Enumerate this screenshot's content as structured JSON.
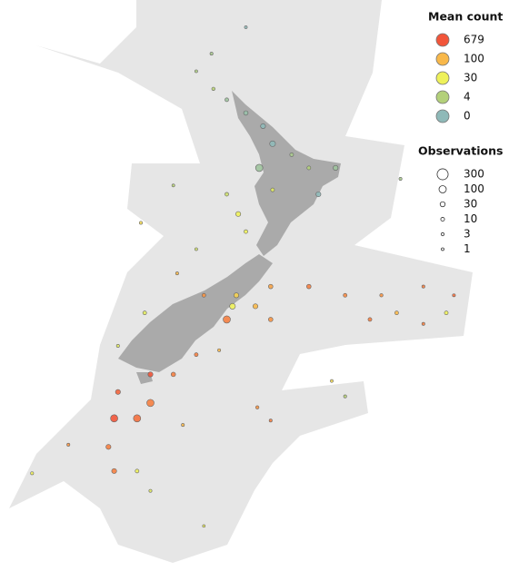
{
  "legend": {
    "mean_count": {
      "title": "Mean count",
      "items": [
        {
          "value": 679,
          "color": "#f2553a"
        },
        {
          "value": 100,
          "color": "#f8b84a"
        },
        {
          "value": 30,
          "color": "#eef15a"
        },
        {
          "value": 4,
          "color": "#b3d07a"
        },
        {
          "value": 0,
          "color": "#8fb9b8"
        }
      ]
    },
    "observations": {
      "title": "Observations",
      "items": [
        300,
        100,
        30,
        10,
        3,
        1
      ]
    }
  },
  "points": [
    {
      "lon": 171.7,
      "lat": -32.5,
      "mean": 2,
      "obs": 3
    },
    {
      "lon": 170.9,
      "lat": -33.3,
      "mean": 3,
      "obs": 2
    },
    {
      "lon": 171.8,
      "lat": -34.1,
      "mean": 5,
      "obs": 5
    },
    {
      "lon": 172.5,
      "lat": -34.6,
      "mean": 1,
      "obs": 10
    },
    {
      "lon": 173.5,
      "lat": -35.2,
      "mean": 0.5,
      "obs": 20
    },
    {
      "lon": 174.4,
      "lat": -35.8,
      "mean": 0,
      "obs": 30
    },
    {
      "lon": 174.9,
      "lat": -36.6,
      "mean": 0,
      "obs": 50
    },
    {
      "lon": 174.2,
      "lat": -37.7,
      "mean": 1,
      "obs": 100
    },
    {
      "lon": 175.9,
      "lat": -37.1,
      "mean": 2,
      "obs": 10
    },
    {
      "lon": 176.8,
      "lat": -37.7,
      "mean": 4,
      "obs": 10
    },
    {
      "lon": 178.2,
      "lat": -37.7,
      "mean": 1,
      "obs": 30
    },
    {
      "lon": 181.6,
      "lat": -38.2,
      "mean": 2,
      "obs": 3
    },
    {
      "lon": 177.3,
      "lat": -38.9,
      "mean": 0,
      "obs": 30
    },
    {
      "lon": 174.9,
      "lat": -38.7,
      "mean": 20,
      "obs": 10
    },
    {
      "lon": 173.1,
      "lat": -39.8,
      "mean": 30,
      "obs": 30
    },
    {
      "lon": 173.5,
      "lat": -40.6,
      "mean": 30,
      "obs": 10
    },
    {
      "lon": 172.5,
      "lat": -38.9,
      "mean": 10,
      "obs": 10
    },
    {
      "lon": 169.7,
      "lat": -38.5,
      "mean": 5,
      "obs": 2
    },
    {
      "lon": 168.0,
      "lat": -40.2,
      "mean": 50,
      "obs": 3
    },
    {
      "lon": 170.9,
      "lat": -41.4,
      "mean": 10,
      "obs": 2
    },
    {
      "lon": 169.9,
      "lat": -42.5,
      "mean": 100,
      "obs": 3
    },
    {
      "lon": 171.3,
      "lat": -43.5,
      "mean": 200,
      "obs": 10
    },
    {
      "lon": 173.0,
      "lat": -43.5,
      "mean": 60,
      "obs": 30
    },
    {
      "lon": 174.8,
      "lat": -43.1,
      "mean": 150,
      "obs": 20
    },
    {
      "lon": 176.8,
      "lat": -43.1,
      "mean": 300,
      "obs": 20
    },
    {
      "lon": 178.7,
      "lat": -43.5,
      "mean": 250,
      "obs": 10
    },
    {
      "lon": 180.6,
      "lat": -43.5,
      "mean": 200,
      "obs": 5
    },
    {
      "lon": 182.8,
      "lat": -43.1,
      "mean": 300,
      "obs": 3
    },
    {
      "lon": 184.4,
      "lat": -43.5,
      "mean": 400,
      "obs": 3
    },
    {
      "lon": 172.8,
      "lat": -44.0,
      "mean": 30,
      "obs": 50
    },
    {
      "lon": 174.0,
      "lat": -44.0,
      "mean": 100,
      "obs": 30
    },
    {
      "lon": 172.5,
      "lat": -44.6,
      "mean": 300,
      "obs": 100
    },
    {
      "lon": 174.8,
      "lat": -44.6,
      "mean": 200,
      "obs": 20
    },
    {
      "lon": 180.0,
      "lat": -44.6,
      "mean": 300,
      "obs": 10
    },
    {
      "lon": 181.4,
      "lat": -44.3,
      "mean": 100,
      "obs": 10
    },
    {
      "lon": 184.0,
      "lat": -44.3,
      "mean": 30,
      "obs": 10
    },
    {
      "lon": 182.8,
      "lat": -44.8,
      "mean": 300,
      "obs": 3
    },
    {
      "lon": 168.2,
      "lat": -44.3,
      "mean": 20,
      "obs": 10
    },
    {
      "lon": 166.8,
      "lat": -45.8,
      "mean": 20,
      "obs": 3
    },
    {
      "lon": 168.5,
      "lat": -47.1,
      "mean": 679,
      "obs": 30
    },
    {
      "lon": 169.7,
      "lat": -47.1,
      "mean": 300,
      "obs": 20
    },
    {
      "lon": 168.5,
      "lat": -48.4,
      "mean": 300,
      "obs": 100
    },
    {
      "lon": 166.8,
      "lat": -47.9,
      "mean": 500,
      "obs": 30
    },
    {
      "lon": 166.6,
      "lat": -49.1,
      "mean": 679,
      "obs": 100
    },
    {
      "lon": 167.8,
      "lat": -49.1,
      "mean": 400,
      "obs": 100
    },
    {
      "lon": 166.3,
      "lat": -50.4,
      "mean": 300,
      "obs": 30
    },
    {
      "lon": 166.6,
      "lat": -51.5,
      "mean": 300,
      "obs": 30
    },
    {
      "lon": 167.8,
      "lat": -51.5,
      "mean": 30,
      "obs": 10
    },
    {
      "lon": 164.2,
      "lat": -50.3,
      "mean": 200,
      "obs": 3
    },
    {
      "lon": 162.3,
      "lat": -51.6,
      "mean": 30,
      "obs": 3
    },
    {
      "lon": 170.2,
      "lat": -49.4,
      "mean": 100,
      "obs": 3
    },
    {
      "lon": 174.8,
      "lat": -49.2,
      "mean": 300,
      "obs": 3
    },
    {
      "lon": 174.1,
      "lat": -48.6,
      "mean": 200,
      "obs": 5
    },
    {
      "lon": 178.7,
      "lat": -48.1,
      "mean": 5,
      "obs": 3
    },
    {
      "lon": 178.0,
      "lat": -47.4,
      "mean": 50,
      "obs": 2
    },
    {
      "lon": 171.3,
      "lat": -54.0,
      "mean": 30,
      "obs": 1
    },
    {
      "lon": 173.5,
      "lat": -31.3,
      "mean": 0,
      "obs": 2
    },
    {
      "lon": 168.5,
      "lat": -52.4,
      "mean": 20,
      "obs": 3
    },
    {
      "lon": 170.9,
      "lat": -46.2,
      "mean": 300,
      "obs": 10
    },
    {
      "lon": 172.1,
      "lat": -46.0,
      "mean": 100,
      "obs": 3
    }
  ]
}
